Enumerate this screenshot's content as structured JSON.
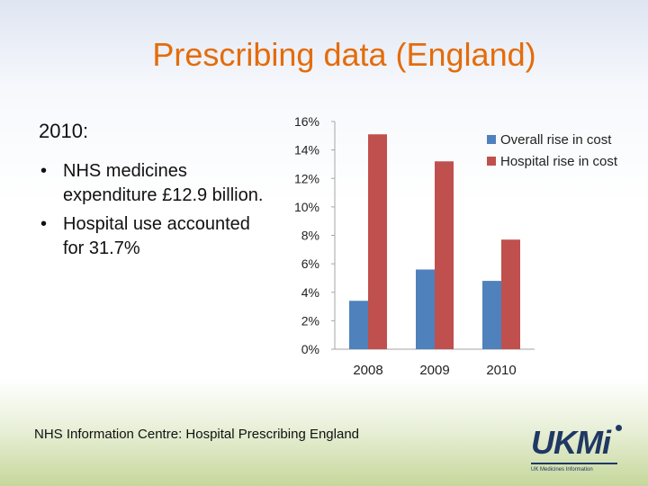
{
  "title": "Prescribing data (England)",
  "left": {
    "year": "2010:",
    "bullets": [
      "NHS medicines expenditure £12.9 billion.",
      "Hospital use accounted for 31.7%"
    ]
  },
  "source": "NHS Information Centre: Hospital Prescribing England",
  "logo": {
    "text": "UKMi",
    "subtitle": "UK Medicines Information"
  },
  "colors": {
    "title": "#e46c0a",
    "overall": "#4f81bd",
    "hospital": "#c0504d",
    "axis": "#a6a6a6"
  },
  "chart_data": {
    "type": "bar",
    "categories": [
      "2008",
      "2009",
      "2010"
    ],
    "series": [
      {
        "name": "Overall rise in cost",
        "values": [
          3.4,
          5.6,
          4.8
        ]
      },
      {
        "name": "Hospital rise in cost",
        "values": [
          15.1,
          13.2,
          7.7
        ]
      }
    ],
    "yticks": [
      "0%",
      "2%",
      "4%",
      "6%",
      "8%",
      "10%",
      "12%",
      "14%",
      "16%"
    ],
    "ylim": [
      0,
      16
    ],
    "legend": "top-right",
    "title": "",
    "xlabel": "",
    "ylabel": ""
  }
}
